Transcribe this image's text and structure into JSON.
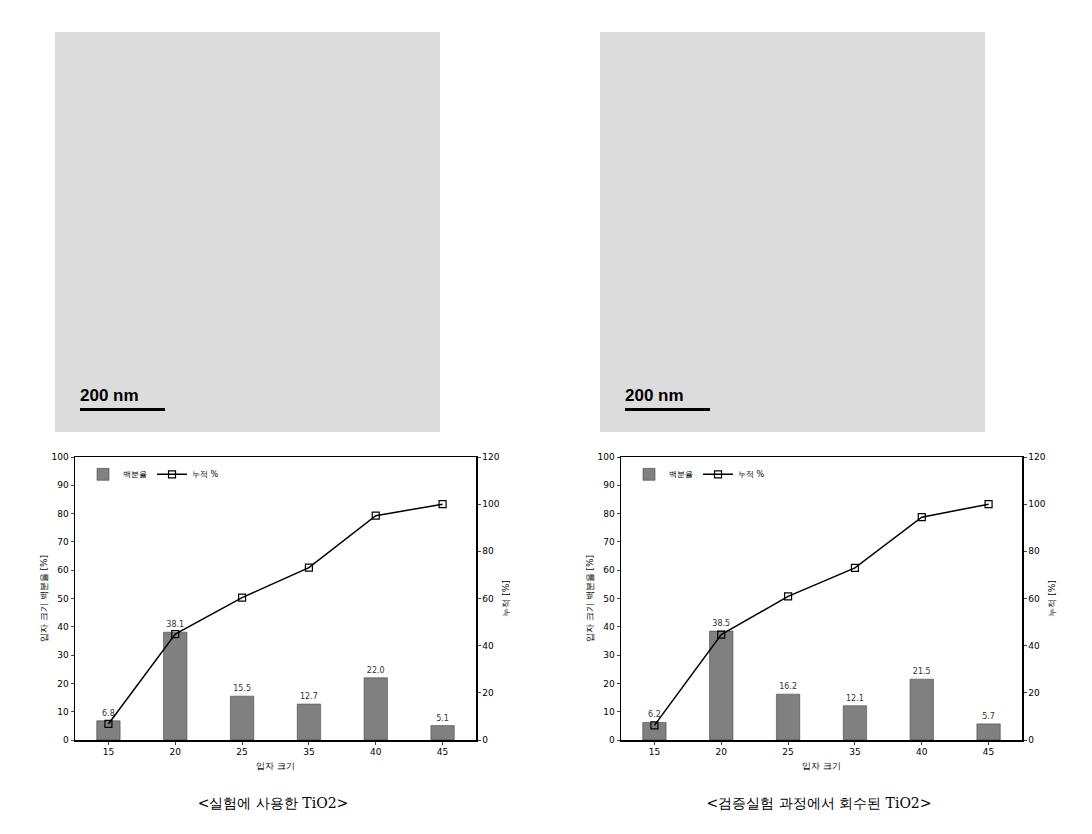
{
  "images": [
    {
      "scale_bar": "200 nm"
    },
    {
      "scale_bar": "200 nm"
    }
  ],
  "chart_data": [
    {
      "type": "bar",
      "title": "<실험에 사용한 TiO2>",
      "x_label": "입자 크기",
      "y_label": "입자 크기 백분율 [%]",
      "y2_label": "누적 [%]",
      "categories": [
        "15",
        "20",
        "25",
        "35",
        "40",
        "45"
      ],
      "series": [
        {
          "name": "백분율",
          "type": "bar",
          "color": "#808080",
          "data_labels": true,
          "values": [
            6.8,
            38.1,
            15.5,
            12.7,
            22.0,
            5.1
          ],
          "value_labels": [
            "6.8",
            "38.1",
            "15.5",
            "12.7",
            "22.0",
            "5.1"
          ]
        },
        {
          "name": "누적 %",
          "type": "line",
          "axis": "y2",
          "color": "#000000",
          "marker": "square-open",
          "values": [
            6.8,
            44.9,
            60.4,
            73.1,
            95.1,
            100
          ]
        }
      ],
      "ylim": [
        0,
        100
      ],
      "yticks": [
        0,
        10,
        20,
        30,
        40,
        50,
        60,
        70,
        80,
        90,
        100
      ],
      "y2lim": [
        0,
        120
      ],
      "y2ticks": [
        0,
        20,
        40,
        60,
        80,
        100,
        120
      ],
      "legend": "upper left",
      "grid": false
    },
    {
      "type": "bar",
      "title": "<검증실험 과정에서 회수된 TiO2>",
      "x_label": "입자 크기",
      "y_label": "입자 크기 백분율 [%]",
      "y2_label": "누적 [%]",
      "categories": [
        "15",
        "20",
        "25",
        "35",
        "40",
        "45"
      ],
      "series": [
        {
          "name": "백분율",
          "type": "bar",
          "color": "#808080",
          "data_labels": true,
          "values": [
            6.2,
            38.5,
            16.2,
            12.1,
            21.5,
            5.7
          ]
        },
        {
          "name": "누적 %",
          "type": "line",
          "axis": "y2",
          "color": "#000000",
          "marker": "square-open",
          "values": [
            6.2,
            44.7,
            60.9,
            73.0,
            94.5,
            100
          ]
        }
      ],
      "ylim": [
        0,
        100
      ],
      "yticks": [
        0,
        10,
        20,
        30,
        40,
        50,
        60,
        70,
        80,
        90,
        100
      ],
      "y2lim": [
        0,
        120
      ],
      "y2ticks": [
        0,
        20,
        40,
        60,
        80,
        100,
        120
      ],
      "legend": "upper left",
      "grid": false
    }
  ]
}
